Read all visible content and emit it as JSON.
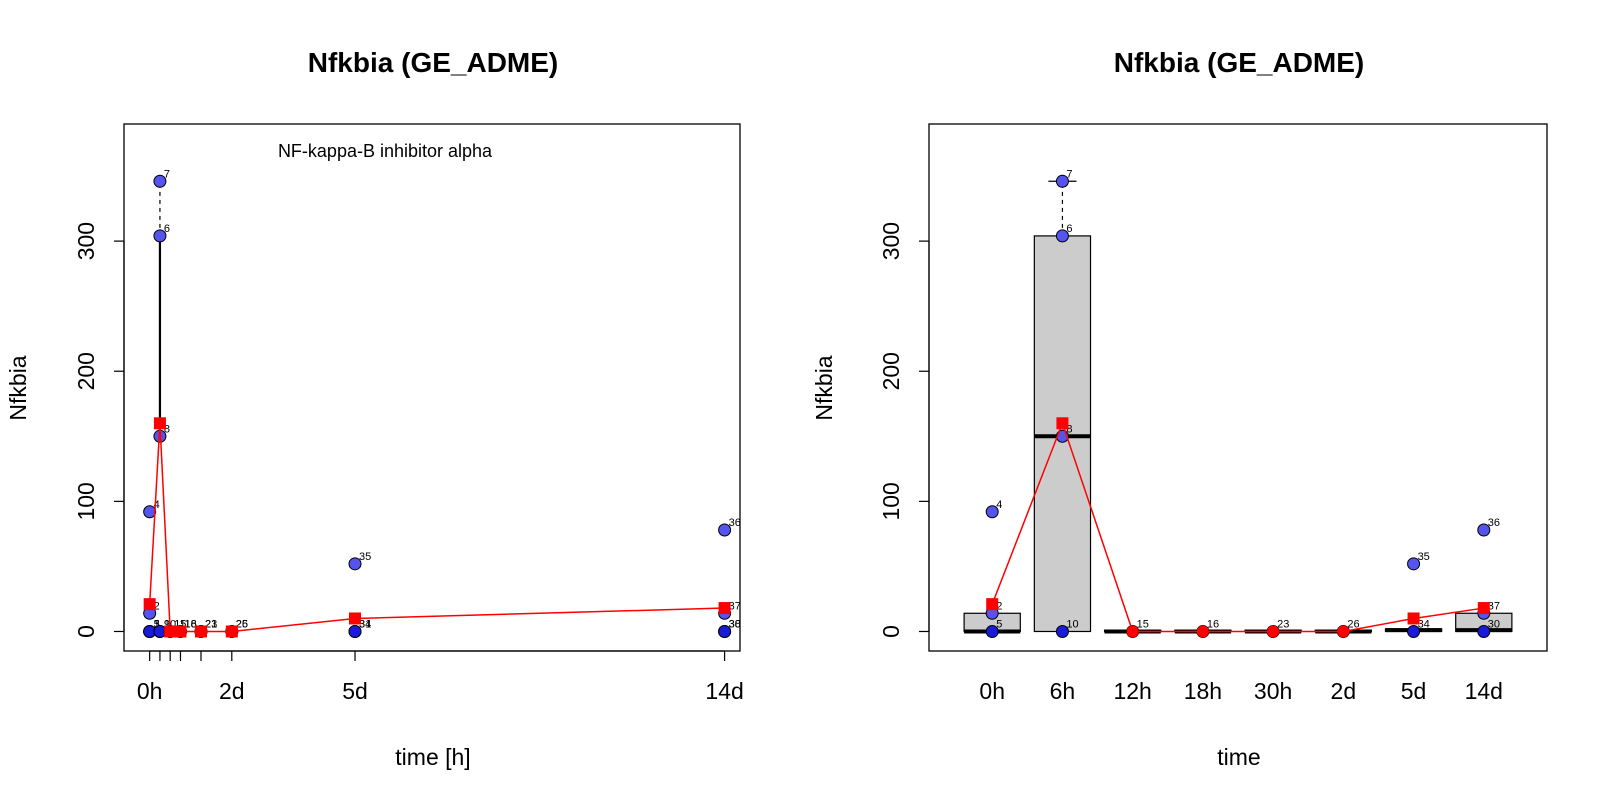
{
  "chart_data": [
    {
      "type": "scatter",
      "title": "Nfkbia (GE_ADME)",
      "annotation": "NF-kappa-B inhibitor alpha",
      "xlabel": "time [h]",
      "ylabel": "Nfkbia",
      "xlim": [
        -15,
        345
      ],
      "ylim": [
        -15,
        390
      ],
      "yticks": [
        0,
        100,
        200,
        300
      ],
      "ytick_labels": [
        "0",
        "100",
        "200",
        "300"
      ],
      "xticks_labeled": [
        0,
        48,
        120,
        336
      ],
      "xtick_labels": [
        "0h",
        "2d",
        "5d",
        "14d"
      ],
      "xticks_minor": [
        6,
        12,
        18,
        30
      ],
      "grid": false,
      "points": [
        {
          "id": "1",
          "x": 0,
          "y": 0
        },
        {
          "id": "2",
          "x": 0,
          "y": 14
        },
        {
          "id": "3",
          "x": 0,
          "y": 0
        },
        {
          "id": "4",
          "x": 0,
          "y": 92
        },
        {
          "id": "5",
          "x": 0,
          "y": 0
        },
        {
          "id": "6",
          "x": 6,
          "y": 304
        },
        {
          "id": "7",
          "x": 6,
          "y": 346
        },
        {
          "id": "8",
          "x": 6,
          "y": 150
        },
        {
          "id": "9",
          "x": 6,
          "y": 0
        },
        {
          "id": "10",
          "x": 6,
          "y": 0
        },
        {
          "id": "11",
          "x": 12,
          "y": 0
        },
        {
          "id": "15",
          "x": 12,
          "y": 0
        },
        {
          "id": "16",
          "x": 18,
          "y": 0
        },
        {
          "id": "18",
          "x": 18,
          "y": 0
        },
        {
          "id": "21",
          "x": 30,
          "y": 0
        },
        {
          "id": "23",
          "x": 30,
          "y": 0
        },
        {
          "id": "25",
          "x": 48,
          "y": 0
        },
        {
          "id": "26",
          "x": 48,
          "y": 0
        },
        {
          "id": "31",
          "x": 120,
          "y": 0
        },
        {
          "id": "34",
          "x": 120,
          "y": 0
        },
        {
          "id": "35",
          "x": 120,
          "y": 52
        },
        {
          "id": "30",
          "x": 336,
          "y": 0
        },
        {
          "id": "36",
          "x": 336,
          "y": 78
        },
        {
          "id": "37",
          "x": 336,
          "y": 14
        },
        {
          "id": "38",
          "x": 336,
          "y": 0
        }
      ],
      "means": [
        {
          "x": 0,
          "y": 21
        },
        {
          "x": 6,
          "y": 160
        },
        {
          "x": 12,
          "y": 0
        },
        {
          "x": 18,
          "y": 0
        },
        {
          "x": 30,
          "y": 0
        },
        {
          "x": 48,
          "y": 0
        },
        {
          "x": 120,
          "y": 10
        },
        {
          "x": 336,
          "y": 18
        }
      ],
      "whiskers": [
        {
          "x": 6,
          "from": 150,
          "to": 304,
          "style": "solid"
        },
        {
          "x": 6,
          "from": 304,
          "to": 346,
          "style": "dashed"
        }
      ],
      "colors": {
        "points": "#5555ee",
        "means": "#ff0000",
        "line": "#ff0000"
      }
    },
    {
      "type": "box",
      "title": "Nfkbia (GE_ADME)",
      "xlabel": "time",
      "ylabel": "Nfkbia",
      "ylim": [
        -15,
        390
      ],
      "yticks": [
        0,
        100,
        200,
        300
      ],
      "ytick_labels": [
        "0",
        "100",
        "200",
        "300"
      ],
      "categories": [
        "0h",
        "6h",
        "12h",
        "18h",
        "30h",
        "2d",
        "5d",
        "14d"
      ],
      "grid": false,
      "boxes": [
        {
          "q1": 0,
          "median": 0,
          "q3": 14,
          "whisker_low": 0,
          "whisker_high": 14
        },
        {
          "q1": 0,
          "median": 150,
          "q3": 304,
          "whisker_low": 0,
          "whisker_high": 346
        },
        {
          "q1": 0,
          "median": 0,
          "q3": 1,
          "whisker_low": 0,
          "whisker_high": 1
        },
        {
          "q1": 0,
          "median": 0,
          "q3": 1,
          "whisker_low": 0,
          "whisker_high": 1
        },
        {
          "q1": 0,
          "median": 0,
          "q3": 1,
          "whisker_low": 0,
          "whisker_high": 1
        },
        {
          "q1": 0,
          "median": 0,
          "q3": 1,
          "whisker_low": 0,
          "whisker_high": 1
        },
        {
          "q1": 0,
          "median": 1,
          "q3": 2,
          "whisker_low": 0,
          "whisker_high": 2
        },
        {
          "q1": 0,
          "median": 1,
          "q3": 14,
          "whisker_low": 0,
          "whisker_high": 14
        }
      ],
      "points": [
        {
          "id": "2",
          "cat": 0,
          "y": 14
        },
        {
          "id": "4",
          "cat": 0,
          "y": 92
        },
        {
          "id": "5",
          "cat": 0,
          "y": 0
        },
        {
          "id": "6",
          "cat": 1,
          "y": 304
        },
        {
          "id": "7",
          "cat": 1,
          "y": 346
        },
        {
          "id": "8",
          "cat": 1,
          "y": 150
        },
        {
          "id": "10",
          "cat": 1,
          "y": 0
        },
        {
          "id": "15",
          "cat": 2,
          "y": 0
        },
        {
          "id": "16",
          "cat": 3,
          "y": 0
        },
        {
          "id": "23",
          "cat": 4,
          "y": 0
        },
        {
          "id": "26",
          "cat": 5,
          "y": 0
        },
        {
          "id": "34",
          "cat": 6,
          "y": 0
        },
        {
          "id": "35",
          "cat": 6,
          "y": 52
        },
        {
          "id": "36",
          "cat": 7,
          "y": 78
        },
        {
          "id": "37",
          "cat": 7,
          "y": 14
        },
        {
          "id": "30",
          "cat": 7,
          "y": 0
        }
      ],
      "means": [
        21,
        160,
        0,
        0,
        0,
        0,
        10,
        18
      ],
      "colors": {
        "box_fill": "#cccccc",
        "points": "#5555ee",
        "means": "#ff0000",
        "line": "#ff0000"
      }
    }
  ]
}
